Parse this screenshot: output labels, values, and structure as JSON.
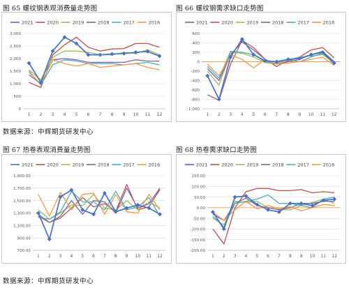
{
  "page": {
    "titles": [
      "图 65 螺纹钢表观消费量走势图",
      "图 66 螺纹钢需求缺口走势图",
      "图 67 热卷表观消费量走势图",
      "图 68 热卷需求缺口走势图"
    ],
    "sources": [
      "数据来源：中辉期货研发中心",
      "数据来源：中辉期货研发中心"
    ]
  },
  "colors": {
    "2021": "#4472c4",
    "2020": "#c0504d",
    "2019": "#9bbb59",
    "2018": "#8064a2",
    "2017": "#4bacc6",
    "2016": "#f79646",
    "grid": "#d9d9d9",
    "zero": "#f79646"
  },
  "chart_data": [
    {
      "type": "line",
      "title": "图 65 螺纹钢表观消费量走势图",
      "x": [
        1,
        2,
        3,
        4,
        5,
        6,
        7,
        8,
        9,
        10,
        11,
        12
      ],
      "ylim": [
        0,
        3000
      ],
      "yticks": [
        0,
        500,
        1000,
        1500,
        2000,
        2500,
        3000
      ],
      "ytick_labels": [
        "0",
        "500",
        "1,000",
        "1,500",
        "2,000",
        "2,500",
        "3,000"
      ],
      "series": [
        {
          "name": "2021",
          "values": [
            1820,
            1050,
            2300,
            2850,
            2600,
            2150,
            2150,
            2180,
            2200,
            2250,
            2280,
            2100
          ]
        },
        {
          "name": "2020",
          "values": [
            1050,
            850,
            2150,
            2550,
            2850,
            2450,
            2300,
            2380,
            2400,
            2600,
            2600,
            2450
          ]
        },
        {
          "name": "2019",
          "values": [
            1550,
            1150,
            2050,
            2300,
            2300,
            2250,
            2150,
            2150,
            2250,
            2200,
            2350,
            2150
          ]
        },
        {
          "name": "2018",
          "values": [
            1350,
            1000,
            1950,
            2000,
            1950,
            1850,
            1850,
            1850,
            1850,
            1950,
            1900,
            1900
          ]
        },
        {
          "name": "2017",
          "values": [
            1500,
            950,
            1750,
            1950,
            1900,
            1800,
            1800,
            1800,
            1750,
            1800,
            1850,
            1750
          ]
        },
        {
          "name": "2016",
          "values": [
            1450,
            1000,
            1950,
            1800,
            1700,
            1800,
            1650,
            1700,
            1750,
            1800,
            1650,
            1550
          ]
        }
      ]
    },
    {
      "type": "line",
      "title": "图 66 螺纹钢需求缺口走势图",
      "x": [
        1,
        2,
        3,
        4,
        5,
        6,
        7,
        8,
        9,
        10,
        11,
        12
      ],
      "ylim": [
        -1000,
        600
      ],
      "yticks": [
        -1000,
        -800,
        -600,
        -400,
        -200,
        0,
        200,
        400,
        600
      ],
      "ytick_labels": [
        "-1,000",
        "-800",
        "-600",
        "-400",
        "-200",
        "0",
        "200",
        "400",
        "600"
      ],
      "series": [
        {
          "name": "2021",
          "values": [
            -300,
            -800,
            100,
            480,
            150,
            20,
            0,
            50,
            70,
            150,
            200,
            -30
          ]
        },
        {
          "name": "2020",
          "values": [
            -700,
            -820,
            -50,
            450,
            300,
            50,
            -100,
            30,
            100,
            250,
            300,
            80
          ]
        },
        {
          "name": "2019",
          "values": [
            -200,
            -500,
            200,
            180,
            100,
            -20,
            -50,
            0,
            100,
            120,
            150,
            -20
          ]
        },
        {
          "name": "2018",
          "values": [
            -150,
            -400,
            150,
            420,
            250,
            50,
            -50,
            0,
            50,
            150,
            220,
            0
          ]
        },
        {
          "name": "2017",
          "values": [
            -100,
            -350,
            220,
            200,
            150,
            0,
            -30,
            50,
            0,
            100,
            180,
            -50
          ]
        },
        {
          "name": "2016",
          "values": [
            -50,
            -300,
            150,
            50,
            -130,
            50,
            -50,
            -30,
            0,
            50,
            100,
            -80
          ]
        }
      ]
    },
    {
      "type": "line",
      "title": "图 67 热卷表观消费量走势图",
      "x": [
        1,
        2,
        3,
        4,
        5,
        6,
        7,
        8,
        9,
        10,
        11,
        12
      ],
      "ylim": [
        700,
        1900
      ],
      "yticks": [
        700,
        900,
        1100,
        1300,
        1500,
        1700,
        1900
      ],
      "ytick_labels": [
        "700.00",
        "900.00",
        "1,100.00",
        "1,300.00",
        "1,500.00",
        "1,700.00",
        "1,900.00"
      ],
      "series": [
        {
          "name": "2021",
          "values": [
            1300,
            880,
            1560,
            1670,
            1350,
            1280,
            1620,
            1320,
            1380,
            1430,
            1380,
            1280
          ]
        },
        {
          "name": "2020",
          "values": [
            1250,
            1150,
            1220,
            1380,
            1550,
            1400,
            1450,
            1330,
            1760,
            1350,
            1400,
            1680
          ]
        },
        {
          "name": "2019",
          "values": [
            1350,
            1200,
            1300,
            1430,
            1420,
            1600,
            1380,
            1350,
            1500,
            1350,
            1480,
            1380
          ]
        },
        {
          "name": "2018",
          "values": [
            1280,
            1150,
            1250,
            1500,
            1280,
            1500,
            1480,
            1300,
            1700,
            1380,
            1450,
            1700
          ]
        },
        {
          "name": "2017",
          "values": [
            1230,
            1200,
            1320,
            1650,
            1480,
            1480,
            1350,
            1650,
            1350,
            1400,
            1550,
            1250
          ]
        },
        {
          "name": "2016",
          "values": [
            1600,
            1250,
            1630,
            1350,
            1600,
            1620,
            1280,
            1600,
            1320,
            1300,
            1600,
            1350
          ]
        }
      ]
    },
    {
      "type": "line",
      "title": "图 68 热卷需求缺口走势图",
      "x": [
        1,
        2,
        3,
        4,
        5,
        6,
        7,
        8,
        9,
        10,
        11,
        12
      ],
      "ylim": [
        -200,
        150
      ],
      "yticks": [
        -200,
        -150,
        -100,
        -50,
        0,
        50,
        100,
        150
      ],
      "ytick_labels": [
        "-200.00",
        "-150.00",
        "-100.00",
        "-50.00",
        "0.00",
        "50.00",
        "100.00",
        "150.00"
      ],
      "series": [
        {
          "name": "2021",
          "values": [
            -20,
            -100,
            50,
            55,
            15,
            -10,
            -20,
            20,
            20,
            10,
            35,
            40
          ]
        },
        {
          "name": "2020",
          "values": [
            -100,
            -170,
            0,
            75,
            90,
            90,
            80,
            80,
            85,
            70,
            75,
            70
          ]
        },
        {
          "name": "2019",
          "values": [
            -50,
            -80,
            30,
            25,
            30,
            0,
            -10,
            -10,
            10,
            25,
            40,
            20
          ]
        },
        {
          "name": "2018",
          "values": [
            -30,
            -60,
            20,
            45,
            10,
            0,
            -10,
            0,
            20,
            20,
            30,
            30
          ]
        },
        {
          "name": "2017",
          "values": [
            -40,
            -90,
            20,
            30,
            40,
            60,
            20,
            20,
            10,
            0,
            40,
            50
          ]
        },
        {
          "name": "2016",
          "values": [
            -20,
            -60,
            -10,
            30,
            -5,
            10,
            -5,
            5,
            -15,
            0,
            15,
            10
          ]
        }
      ]
    }
  ]
}
